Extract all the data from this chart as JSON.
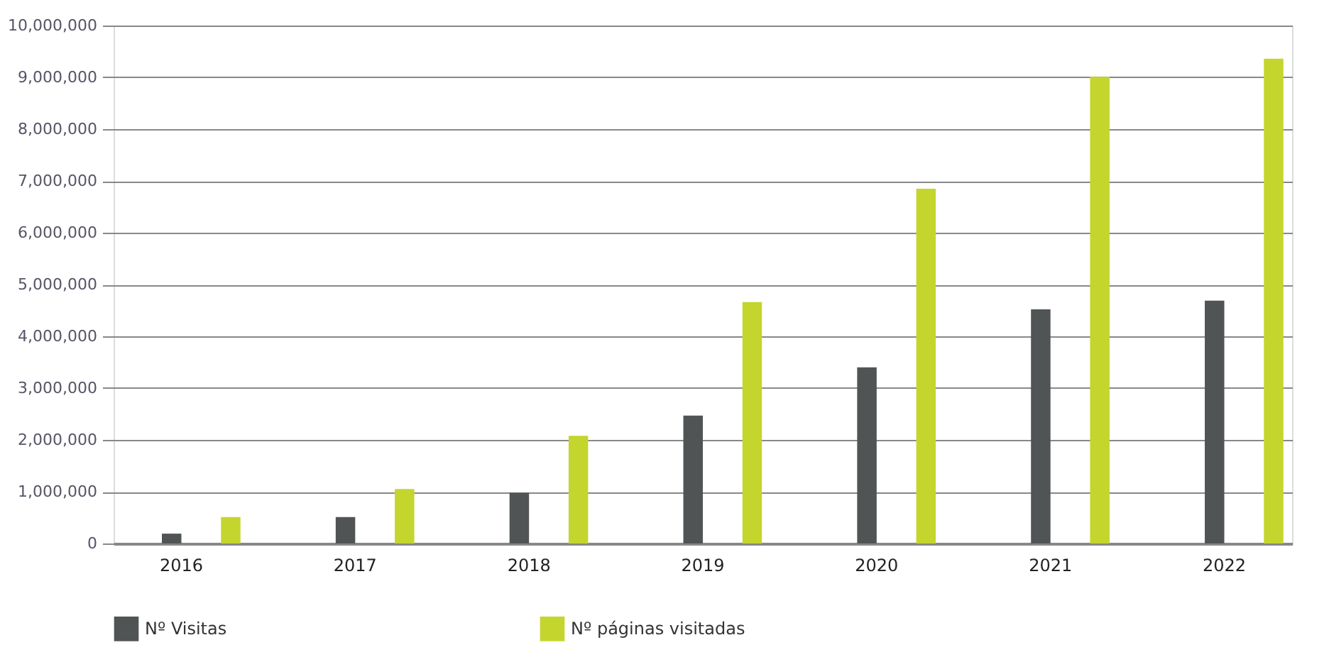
{
  "chart_data": {
    "type": "bar",
    "categories": [
      "2016",
      "2017",
      "2018",
      "2019",
      "2020",
      "2021",
      "2022"
    ],
    "series": [
      {
        "name": "Nº Visitas",
        "color": "#505455",
        "values": [
          190000,
          510000,
          980000,
          2470000,
          3400000,
          4520000,
          4690000
        ]
      },
      {
        "name": "Nº páginas visitadas",
        "color": "#c4d52e",
        "values": [
          510000,
          1050000,
          2080000,
          4660000,
          6850000,
          9010000,
          9360000
        ]
      }
    ],
    "ylim": [
      0,
      10000000
    ],
    "yticks": [
      {
        "value": 0,
        "label": "0"
      },
      {
        "value": 1000000,
        "label": "1,000,000"
      },
      {
        "value": 2000000,
        "label": "2,000,000"
      },
      {
        "value": 3000000,
        "label": "3,000,000"
      },
      {
        "value": 4000000,
        "label": "4,000,000"
      },
      {
        "value": 5000000,
        "label": "5,000,000"
      },
      {
        "value": 6000000,
        "label": "6,000,000"
      },
      {
        "value": 7000000,
        "label": "7,000,000"
      },
      {
        "value": 8000000,
        "label": "8,000,000"
      },
      {
        "value": 9000000,
        "label": "9,000,000"
      },
      {
        "value": 10000000,
        "label": "10,000,000"
      }
    ],
    "grid": "y",
    "legend": "bottom"
  }
}
